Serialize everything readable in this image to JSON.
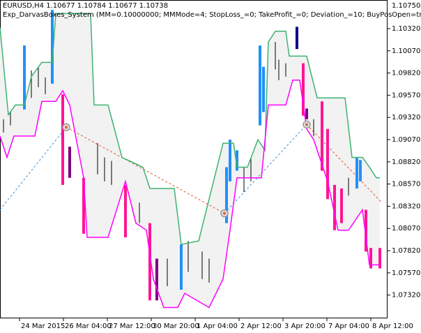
{
  "chart_data": {
    "type": "channel",
    "header": "EURUSD,H4  1.10677 1.10784 1.10677 1.10738",
    "subtitle": "Exp_DarvasBoxes_System (MM=0.10000000; MMMode=4; StopLoss_=0; TakeProfit_=0; Deviation_=10; BuyPosOpen=true; SellP",
    "top_label": "1.10750",
    "xlim": [
      0,
      111.2
    ],
    "ylim": [
      1.07058,
      1.10642
    ],
    "band_color": "#f2f2f2",
    "xticks": [
      {
        "value": 5.6,
        "label": "24 Mar 2015"
      },
      {
        "value": 18.2,
        "label": "26 Mar 04:00"
      },
      {
        "value": 30.8,
        "label": "27 Mar 12:00"
      },
      {
        "value": 43.4,
        "label": "30 Mar 20:00"
      },
      {
        "value": 56,
        "label": "1 Apr 04:00"
      },
      {
        "value": 68.6,
        "label": "2 Apr 12:00"
      },
      {
        "value": 81.2,
        "label": "3 Apr 20:00"
      },
      {
        "value": 93.8,
        "label": "7 Apr 04:00"
      },
      {
        "value": 106.4,
        "label": "8 Apr 12:00"
      }
    ],
    "yticks": [
      {
        "value": 1.1032,
        "label": "1.10320"
      },
      {
        "value": 1.1007,
        "label": "1.10070"
      },
      {
        "value": 1.0982,
        "label": "1.09820"
      },
      {
        "value": 1.0957,
        "label": "1.09570"
      },
      {
        "value": 1.0932,
        "label": "1.09320"
      },
      {
        "value": 1.0907,
        "label": "1.09070"
      },
      {
        "value": 1.0882,
        "label": "1.08820"
      },
      {
        "value": 1.0857,
        "label": "1.08570"
      },
      {
        "value": 1.0832,
        "label": "1.08320"
      },
      {
        "value": 1.0807,
        "label": "1.08070"
      },
      {
        "value": 1.0782,
        "label": "1.07820"
      },
      {
        "value": 1.0757,
        "label": "1.07570"
      },
      {
        "value": 1.0732,
        "label": "1.07320"
      }
    ],
    "upper": {
      "color": "#3cb371",
      "x": [
        0,
        2.4,
        4.4,
        7,
        9,
        12,
        15,
        16,
        18.4,
        26,
        27,
        31,
        35,
        41,
        43,
        50,
        52,
        57,
        64,
        67,
        68,
        71,
        74,
        76,
        77,
        79,
        82,
        83,
        88,
        91,
        99,
        101,
        104,
        106,
        108,
        109
      ],
      "values": [
        1.1033,
        1.0935,
        1.0946,
        1.0946,
        1.0978,
        1.0994,
        1.0994,
        1.1049,
        1.1049,
        1.1049,
        1.0946,
        1.0946,
        1.0887,
        1.0876,
        1.0852,
        1.0852,
        1.0789,
        1.0793,
        1.0903,
        1.0903,
        1.0876,
        1.0876,
        1.0907,
        1.0895,
        1.1017,
        1.1029,
        1.1029,
        1.1001,
        1.1001,
        1.0954,
        1.0954,
        1.0887,
        1.0887,
        1.0876,
        1.0864,
        1.0864
      ]
    },
    "lower": {
      "color": "#ff00ff",
      "x": [
        0,
        2,
        4,
        10,
        12,
        16,
        18,
        20,
        24,
        25,
        31,
        36,
        39,
        42,
        44,
        47,
        51,
        53,
        60,
        64,
        66,
        68,
        75,
        77,
        82,
        84,
        86,
        88,
        90,
        94,
        97,
        100,
        104,
        106,
        109
      ],
      "values": [
        1.0911,
        1.0887,
        1.0911,
        1.0911,
        1.095,
        1.095,
        1.0962,
        1.0946,
        1.0864,
        1.0797,
        1.0797,
        1.086,
        1.0813,
        1.0805,
        1.075,
        1.0718,
        1.0718,
        1.0734,
        1.0718,
        1.075,
        1.0805,
        1.0864,
        1.0864,
        1.0946,
        1.0946,
        1.0974,
        1.0974,
        1.0919,
        1.0907,
        1.086,
        1.0805,
        1.0805,
        1.0828,
        1.0766,
        1.0766
      ]
    },
    "bars": [
      {
        "x": 7,
        "high": 1.1013,
        "low": 1.0941,
        "color": "#1e90ff"
      },
      {
        "x": 15,
        "high": 1.1053,
        "low": 1.097,
        "color": "#1e90ff"
      },
      {
        "x": 52,
        "high": 1.0789,
        "low": 1.0738,
        "color": "#1e90ff"
      },
      {
        "x": 65,
        "high": 1.0876,
        "low": 1.0813,
        "color": "#1e90ff"
      },
      {
        "x": 66,
        "high": 1.0907,
        "low": 1.086,
        "color": "#1e90ff"
      },
      {
        "x": 68,
        "high": 1.0895,
        "low": 1.0872,
        "color": "#1e90ff"
      },
      {
        "x": 74.6,
        "high": 1.1013,
        "low": 1.0923,
        "color": "#1e90ff"
      },
      {
        "x": 75.6,
        "high": 1.0989,
        "low": 1.0938,
        "color": "#1e90ff"
      },
      {
        "x": 102.4,
        "high": 1.0887,
        "low": 1.0852,
        "color": "#1e90ff"
      },
      {
        "x": 103.4,
        "high": 1.0884,
        "low": 1.086,
        "color": "#1e90ff"
      },
      {
        "x": 85.2,
        "high": 1.1034,
        "low": 1.1009,
        "color": "#00008b"
      },
      {
        "x": 18,
        "high": 1.0958,
        "low": 1.0856,
        "color": "#ff1493"
      },
      {
        "x": 24,
        "high": 1.0864,
        "low": 1.0801,
        "color": "#ff1493"
      },
      {
        "x": 36,
        "high": 1.0856,
        "low": 1.0797,
        "color": "#ff1493"
      },
      {
        "x": 43,
        "high": 1.0813,
        "low": 1.0726,
        "color": "#ff1493"
      },
      {
        "x": 87,
        "high": 1.0993,
        "low": 1.0934,
        "color": "#ff1493"
      },
      {
        "x": 92.4,
        "high": 1.095,
        "low": 1.0872,
        "color": "#ff1493"
      },
      {
        "x": 94,
        "high": 1.0919,
        "low": 1.084,
        "color": "#ff1493"
      },
      {
        "x": 96,
        "high": 1.0856,
        "low": 1.0805,
        "color": "#ff1493"
      },
      {
        "x": 98,
        "high": 1.0852,
        "low": 1.0813,
        "color": "#ff1493"
      },
      {
        "x": 105,
        "high": 1.0828,
        "low": 1.0781,
        "color": "#ff1493"
      },
      {
        "x": 106.4,
        "high": 1.0785,
        "low": 1.0762,
        "color": "#ff1493"
      },
      {
        "x": 109,
        "high": 1.0785,
        "low": 1.0762,
        "color": "#ff1493"
      },
      {
        "x": 20,
        "high": 1.0899,
        "low": 1.0864,
        "color": "#800080"
      },
      {
        "x": 45,
        "high": 1.0773,
        "low": 1.0726,
        "color": "#800080"
      },
      {
        "x": 88,
        "high": 1.0942,
        "low": 1.093,
        "color": "#800080"
      },
      {
        "x": 1,
        "high": 1.093,
        "low": 1.0915,
        "color": "#000000"
      },
      {
        "x": 3,
        "high": 1.0938,
        "low": 1.0923,
        "color": "#000000"
      },
      {
        "x": 9,
        "high": 1.0985,
        "low": 1.0954,
        "color": "#000000"
      },
      {
        "x": 11,
        "high": 1.0989,
        "low": 1.0966,
        "color": "#000000"
      },
      {
        "x": 13,
        "high": 1.0977,
        "low": 1.0958,
        "color": "#000000"
      },
      {
        "x": 28,
        "high": 1.0903,
        "low": 1.0868,
        "color": "#000000"
      },
      {
        "x": 30,
        "high": 1.0887,
        "low": 1.086,
        "color": "#000000"
      },
      {
        "x": 32,
        "high": 1.0883,
        "low": 1.0856,
        "color": "#000000"
      },
      {
        "x": 40,
        "high": 1.0836,
        "low": 1.0813,
        "color": "#000000"
      },
      {
        "x": 48,
        "high": 1.0773,
        "low": 1.0742,
        "color": "#000000"
      },
      {
        "x": 54,
        "high": 1.0793,
        "low": 1.0758,
        "color": "#000000"
      },
      {
        "x": 58,
        "high": 1.0781,
        "low": 1.075,
        "color": "#000000"
      },
      {
        "x": 60,
        "high": 1.0773,
        "low": 1.0746,
        "color": "#000000"
      },
      {
        "x": 70,
        "high": 1.0876,
        "low": 1.0848,
        "color": "#000000"
      },
      {
        "x": 72,
        "high": 1.0887,
        "low": 1.086,
        "color": "#000000"
      },
      {
        "x": 79,
        "high": 1.1017,
        "low": 1.0986,
        "color": "#000000"
      },
      {
        "x": 80,
        "high": 1.0997,
        "low": 1.0974,
        "color": "#000000"
      },
      {
        "x": 82,
        "high": 1.0993,
        "low": 1.0978,
        "color": "#000000"
      },
      {
        "x": 90,
        "high": 1.093,
        "low": 1.0911,
        "color": "#000000"
      },
      {
        "x": 100,
        "high": 1.0864,
        "low": 1.0844,
        "color": "#000000"
      }
    ],
    "trade_lines": [
      {
        "color": "#3a8fd0",
        "x": [
          0,
          19
        ],
        "values": [
          1.0828,
          1.0921
        ]
      },
      {
        "color": "#e0502a",
        "x": [
          19,
          64.4
        ],
        "values": [
          1.0921,
          1.0824
        ]
      },
      {
        "color": "#3a8fd0",
        "x": [
          64.4,
          88
        ],
        "values": [
          1.0824,
          1.0924
        ]
      },
      {
        "color": "#e0502a",
        "x": [
          88,
          109.6
        ],
        "values": [
          1.0924,
          1.0836
        ]
      }
    ],
    "signals": {
      "x": [
        19,
        64.4,
        88
      ],
      "values": [
        1.0921,
        1.0824,
        1.0924
      ]
    }
  }
}
